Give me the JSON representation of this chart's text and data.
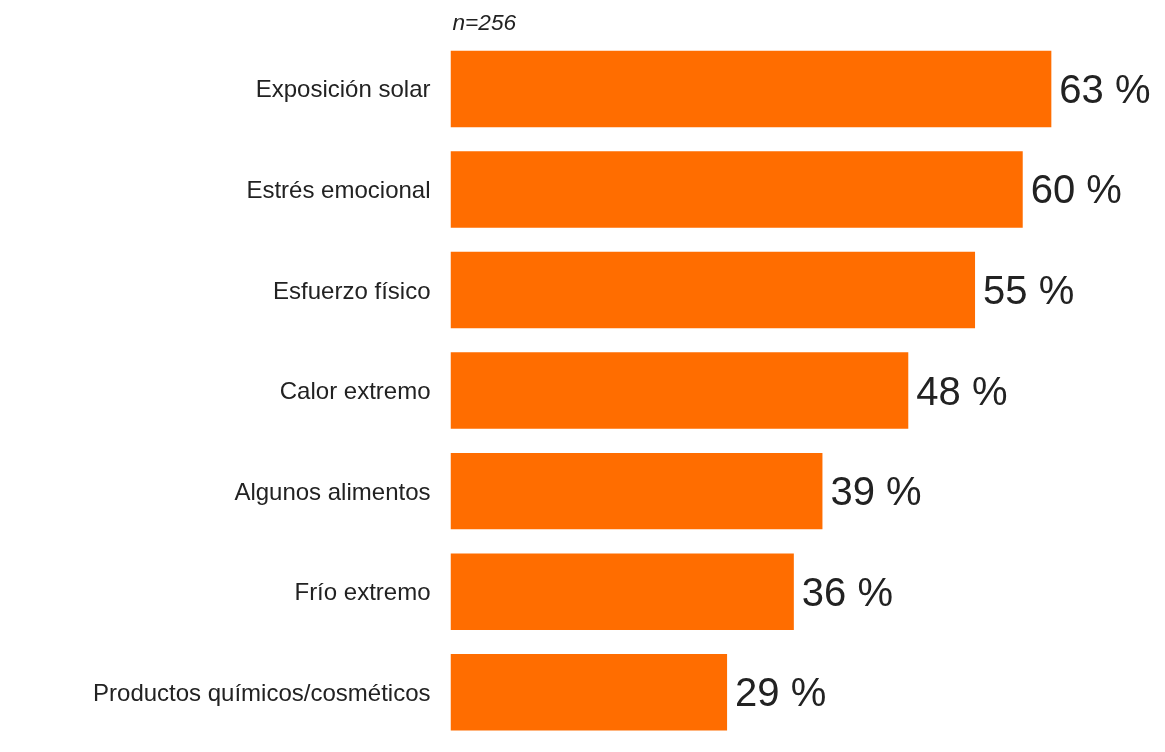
{
  "chart_data": {
    "type": "bar",
    "orientation": "horizontal",
    "categories": [
      "Exposición solar",
      "Estrés emocional",
      "Esfuerzo físico",
      "Calor extremo",
      "Algunos alimentos",
      "Frío extremo",
      "Productos químicos/cosméticos"
    ],
    "values": [
      63,
      60,
      55,
      48,
      39,
      36,
      29
    ],
    "color": "#ff6d00",
    "value_labels": [
      "63 %",
      "60 %",
      "55 %",
      "48 %",
      "39 %",
      "36 %",
      "29 %"
    ],
    "annotations": [
      "n=256"
    ],
    "grid": false
  }
}
